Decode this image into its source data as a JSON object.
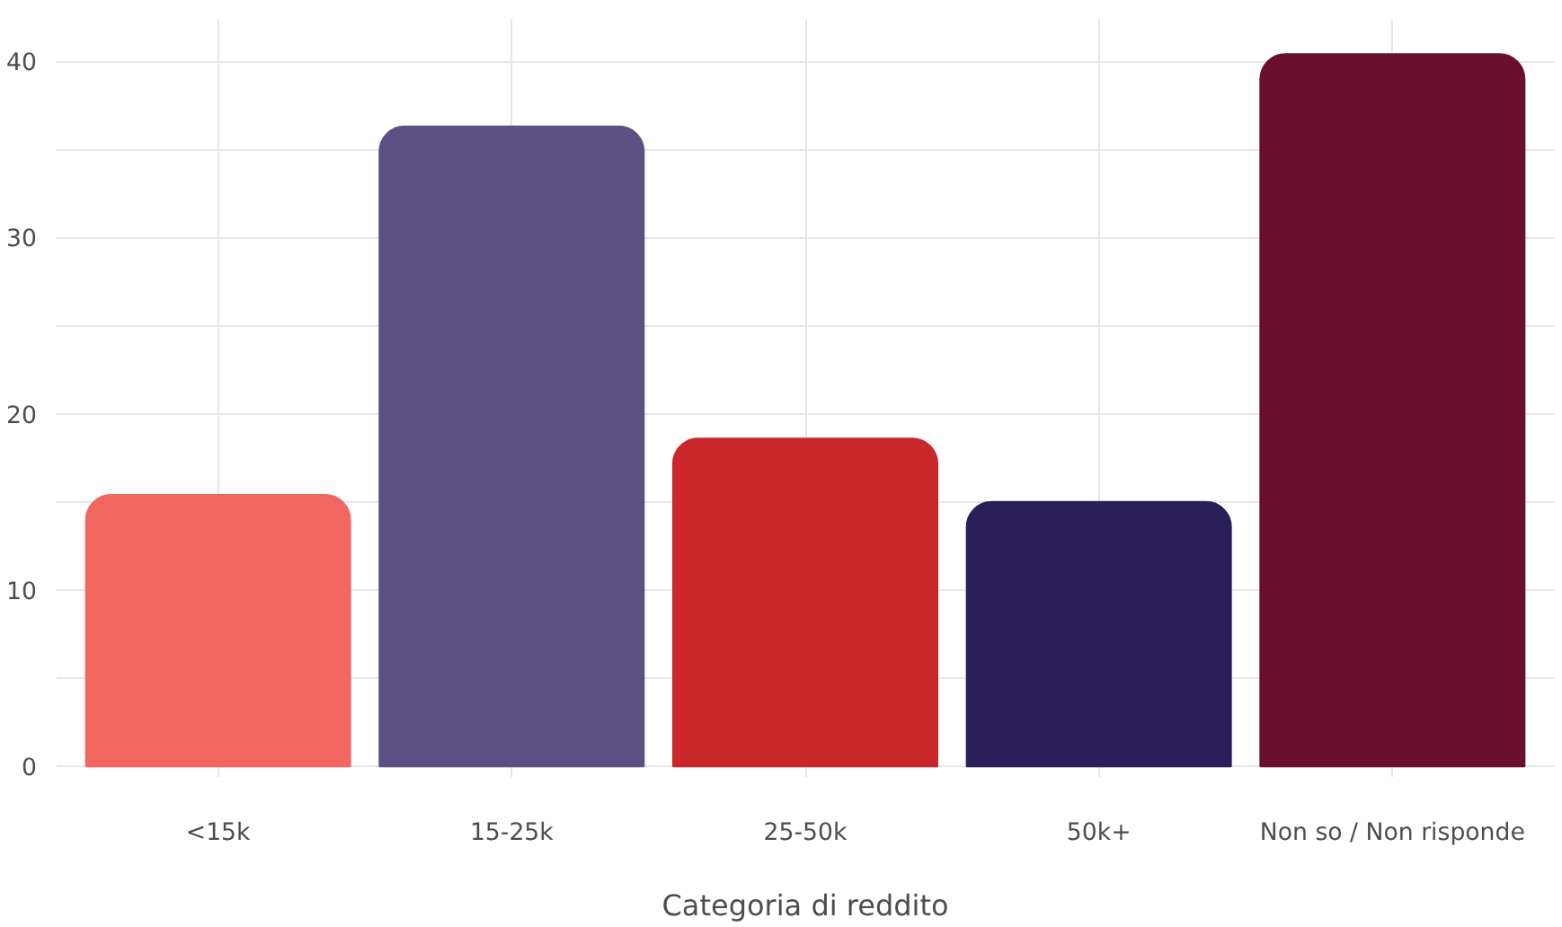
{
  "chart_data": {
    "type": "bar",
    "xlabel": "Categoria di reddito",
    "categories": [
      "<15k",
      "15-25k",
      "25-50k",
      "50k+",
      "Non so / Non risponde"
    ],
    "values": [
      15.4,
      36.3,
      18.6,
      15.0,
      40.4
    ],
    "colors": [
      "#f26661",
      "#5d5082",
      "#c9272a",
      "#2a1f58",
      "#6a102e"
    ],
    "ylim": [
      -0.6,
      42.4
    ],
    "yticks": [
      0,
      {
        "value": 5,
        "label": null
      },
      10,
      {
        "value": 15,
        "label": null
      },
      20,
      {
        "value": 25,
        "label": null
      },
      30,
      {
        "value": 35,
        "label": null
      },
      40
    ],
    "grid": true
  }
}
